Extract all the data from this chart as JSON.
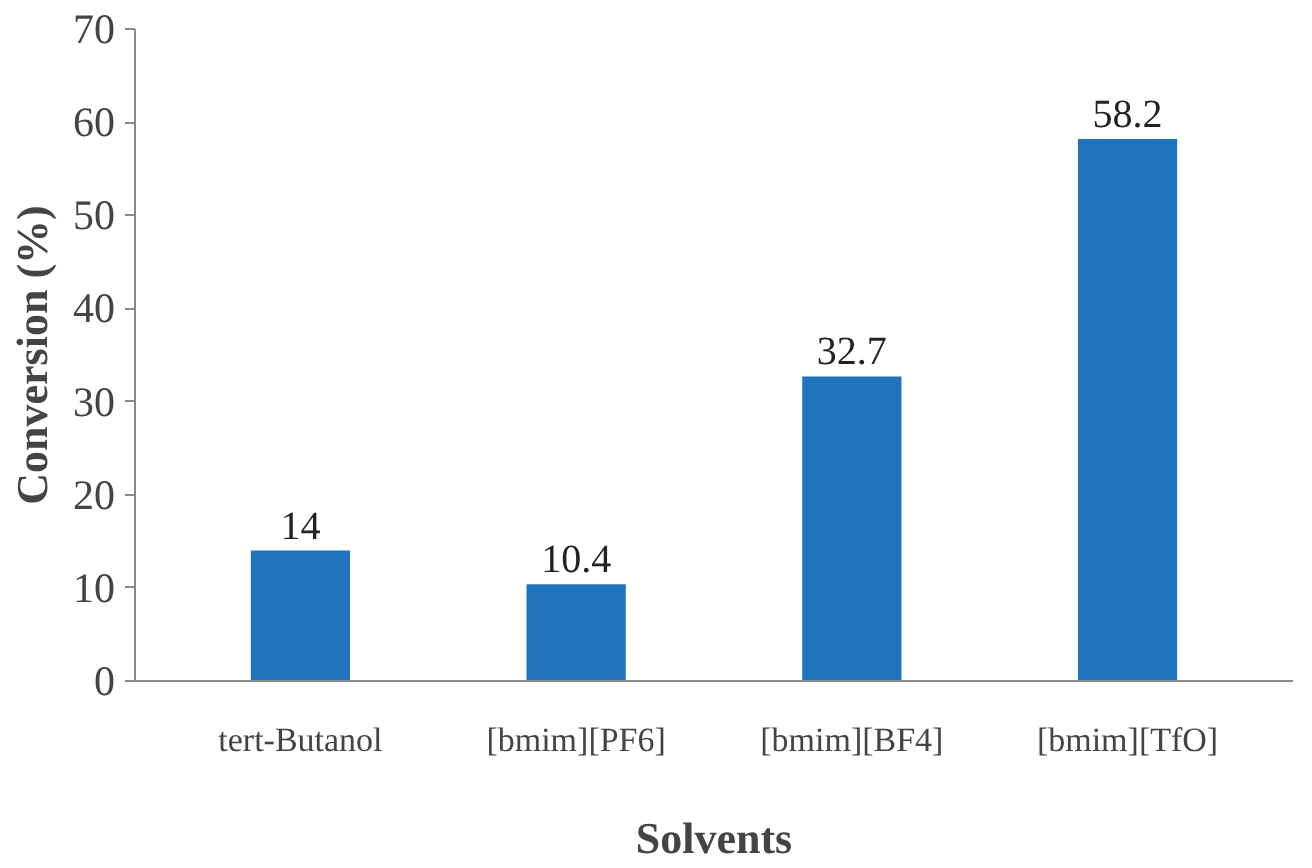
{
  "chart_data": {
    "type": "bar",
    "xlabel": "Solvents",
    "ylabel": "Conversion (%)",
    "categories": [
      "tert-Butanol",
      "[bmim][PF6]",
      "[bmim][BF4]",
      "[bmim][TfO]"
    ],
    "values": [
      14,
      10.4,
      32.7,
      58.2
    ],
    "color": "#1f74bd",
    "ylim": [
      0,
      70
    ],
    "yticks": [
      0,
      10,
      20,
      30,
      40,
      50,
      60,
      70
    ],
    "grid": false,
    "data_labels": true
  }
}
